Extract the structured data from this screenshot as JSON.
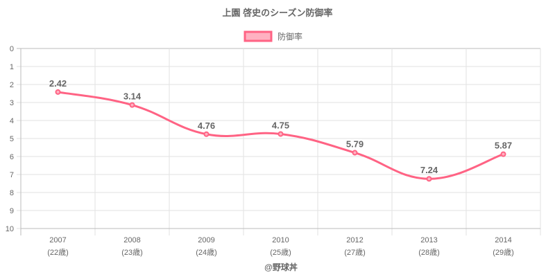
{
  "chart_data": {
    "type": "line",
    "title": "上園 啓史のシーズン防御率",
    "legend": {
      "label": "防御率",
      "position": "top"
    },
    "categories": [
      "2007",
      "2008",
      "2009",
      "2010",
      "2012",
      "2013",
      "2014"
    ],
    "sublabels": [
      "(22歳)",
      "(23歳)",
      "(24歳)",
      "(25歳)",
      "(27歳)",
      "(28歳)",
      "(29歳)"
    ],
    "series": [
      {
        "name": "防御率",
        "values": [
          2.42,
          3.14,
          4.76,
          4.75,
          5.79,
          7.24,
          5.87
        ]
      }
    ],
    "data_labels": [
      "2.42",
      "3.14",
      "4.76",
      "4.75",
      "5.79",
      "7.24",
      "5.87"
    ],
    "ylim": [
      0,
      10
    ],
    "y_reversed": true,
    "yticks": [
      "0",
      "1",
      "2",
      "3",
      "4",
      "5",
      "6",
      "7",
      "8",
      "9",
      "10"
    ],
    "grid": true,
    "colors": {
      "line": "#ff6384",
      "fill": "#ffb1c1"
    }
  },
  "footer": {
    "credit": "@野球丼"
  }
}
